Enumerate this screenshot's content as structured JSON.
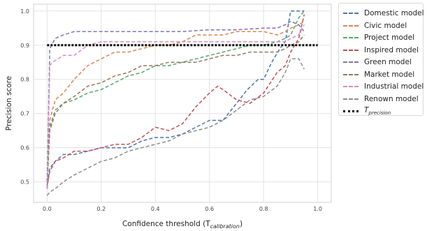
{
  "chart_data": {
    "type": "line",
    "xlabel": "Confidence threshold (T",
    "xlabel_sub": "calibration",
    "xlabel_close": ")",
    "ylabel": "Precision score",
    "xlim": [
      -0.05,
      1.05
    ],
    "ylim": [
      0.44,
      1.02
    ],
    "x_ticks": [
      "0.0",
      "0.2",
      "0.4",
      "0.6",
      "0.8",
      "1.0"
    ],
    "x_tick_values": [
      0,
      0.2,
      0.4,
      0.6,
      0.8,
      1.0
    ],
    "y_ticks": [
      "0.5",
      "0.6",
      "0.7",
      "0.8",
      "0.9",
      "1.0"
    ],
    "y_tick_values": [
      0.5,
      0.6,
      0.7,
      0.8,
      0.9,
      1.0
    ],
    "grid": true,
    "legend_placement": "outside-top-right",
    "threshold": {
      "name": "T",
      "name_sub": "precision",
      "y": 0.9,
      "color": "#000000"
    },
    "series": [
      {
        "name": "Domestic model",
        "color": "#4c72b0",
        "x": [
          0.0,
          0.01,
          0.03,
          0.06,
          0.1,
          0.15,
          0.2,
          0.25,
          0.3,
          0.35,
          0.4,
          0.45,
          0.5,
          0.55,
          0.6,
          0.65,
          0.7,
          0.74,
          0.78,
          0.8,
          0.83,
          0.86,
          0.88,
          0.9,
          0.93,
          0.95
        ],
        "y": [
          0.48,
          0.54,
          0.56,
          0.58,
          0.58,
          0.59,
          0.6,
          0.6,
          0.6,
          0.62,
          0.63,
          0.63,
          0.64,
          0.66,
          0.68,
          0.68,
          0.73,
          0.77,
          0.8,
          0.8,
          0.85,
          0.89,
          0.91,
          1.0,
          1.0,
          1.0
        ]
      },
      {
        "name": "Civic model",
        "color": "#dd8452",
        "x": [
          0.0,
          0.01,
          0.03,
          0.06,
          0.1,
          0.15,
          0.2,
          0.25,
          0.3,
          0.35,
          0.4,
          0.45,
          0.5,
          0.55,
          0.6,
          0.65,
          0.7,
          0.75,
          0.8,
          0.85,
          0.88,
          0.9,
          0.93,
          0.95
        ],
        "y": [
          0.5,
          0.68,
          0.74,
          0.76,
          0.8,
          0.84,
          0.86,
          0.88,
          0.88,
          0.89,
          0.9,
          0.9,
          0.91,
          0.93,
          0.93,
          0.93,
          0.94,
          0.94,
          0.94,
          0.93,
          0.94,
          0.95,
          0.96,
          0.97
        ]
      },
      {
        "name": "Project model",
        "color": "#55a868",
        "x": [
          0.0,
          0.01,
          0.03,
          0.06,
          0.1,
          0.15,
          0.2,
          0.25,
          0.3,
          0.35,
          0.4,
          0.45,
          0.5,
          0.55,
          0.6,
          0.65,
          0.7,
          0.75,
          0.8,
          0.85,
          0.88,
          0.9,
          0.93,
          0.95
        ],
        "y": [
          0.5,
          0.66,
          0.71,
          0.73,
          0.74,
          0.76,
          0.77,
          0.79,
          0.81,
          0.82,
          0.84,
          0.84,
          0.85,
          0.86,
          0.87,
          0.88,
          0.89,
          0.9,
          0.9,
          0.91,
          0.92,
          0.93,
          0.98,
          1.0
        ]
      },
      {
        "name": "Inspired model",
        "color": "#c44e52",
        "x": [
          0.0,
          0.01,
          0.03,
          0.06,
          0.1,
          0.15,
          0.2,
          0.25,
          0.3,
          0.35,
          0.4,
          0.45,
          0.5,
          0.55,
          0.6,
          0.63,
          0.65,
          0.7,
          0.75,
          0.8,
          0.85,
          0.88,
          0.9,
          0.93,
          0.95
        ],
        "y": [
          0.49,
          0.53,
          0.56,
          0.57,
          0.59,
          0.59,
          0.6,
          0.61,
          0.61,
          0.63,
          0.66,
          0.65,
          0.67,
          0.72,
          0.76,
          0.78,
          0.77,
          0.74,
          0.73,
          0.76,
          0.82,
          0.84,
          0.88,
          0.92,
          0.99
        ]
      },
      {
        "name": "Green model",
        "color": "#8172b3",
        "x": [
          0.0,
          0.01,
          0.03,
          0.06,
          0.1,
          0.15,
          0.2,
          0.3,
          0.4,
          0.5,
          0.6,
          0.7,
          0.8,
          0.85,
          0.88,
          0.9,
          0.93,
          0.95
        ],
        "y": [
          0.5,
          0.89,
          0.92,
          0.93,
          0.94,
          0.94,
          0.94,
          0.94,
          0.94,
          0.94,
          0.945,
          0.945,
          0.95,
          0.95,
          0.96,
          0.97,
          0.96,
          0.94
        ]
      },
      {
        "name": "Market model",
        "color": "#937860",
        "x": [
          0.0,
          0.01,
          0.03,
          0.06,
          0.1,
          0.15,
          0.2,
          0.25,
          0.3,
          0.35,
          0.4,
          0.45,
          0.5,
          0.55,
          0.6,
          0.65,
          0.7,
          0.75,
          0.8,
          0.85,
          0.88,
          0.9,
          0.93,
          0.95
        ],
        "y": [
          0.48,
          0.65,
          0.7,
          0.73,
          0.75,
          0.78,
          0.79,
          0.81,
          0.82,
          0.84,
          0.84,
          0.85,
          0.85,
          0.85,
          0.86,
          0.87,
          0.87,
          0.88,
          0.88,
          0.88,
          0.89,
          0.9,
          0.91,
          0.93
        ]
      },
      {
        "name": "Industrial model",
        "color": "#da8bc3",
        "x": [
          0.0,
          0.01,
          0.02,
          0.04,
          0.06,
          0.1,
          0.15,
          0.2,
          0.3,
          0.4,
          0.5,
          0.6,
          0.7,
          0.8,
          0.85,
          0.88,
          0.9,
          0.93,
          0.95
        ],
        "y": [
          0.48,
          0.84,
          0.85,
          0.86,
          0.87,
          0.87,
          0.9,
          0.91,
          0.91,
          0.91,
          0.91,
          0.91,
          0.91,
          0.91,
          0.91,
          0.91,
          0.92,
          0.93,
          0.96
        ]
      },
      {
        "name": "Renown model",
        "color": "#8c8c8c",
        "x": [
          0.0,
          0.01,
          0.03,
          0.06,
          0.1,
          0.15,
          0.2,
          0.25,
          0.3,
          0.35,
          0.4,
          0.45,
          0.5,
          0.55,
          0.6,
          0.65,
          0.7,
          0.75,
          0.8,
          0.85,
          0.88,
          0.9,
          0.93,
          0.95
        ],
        "y": [
          0.46,
          0.47,
          0.48,
          0.5,
          0.52,
          0.54,
          0.56,
          0.57,
          0.59,
          0.6,
          0.61,
          0.62,
          0.64,
          0.65,
          0.66,
          0.68,
          0.71,
          0.74,
          0.75,
          0.78,
          0.82,
          0.86,
          0.86,
          0.83
        ]
      }
    ]
  }
}
